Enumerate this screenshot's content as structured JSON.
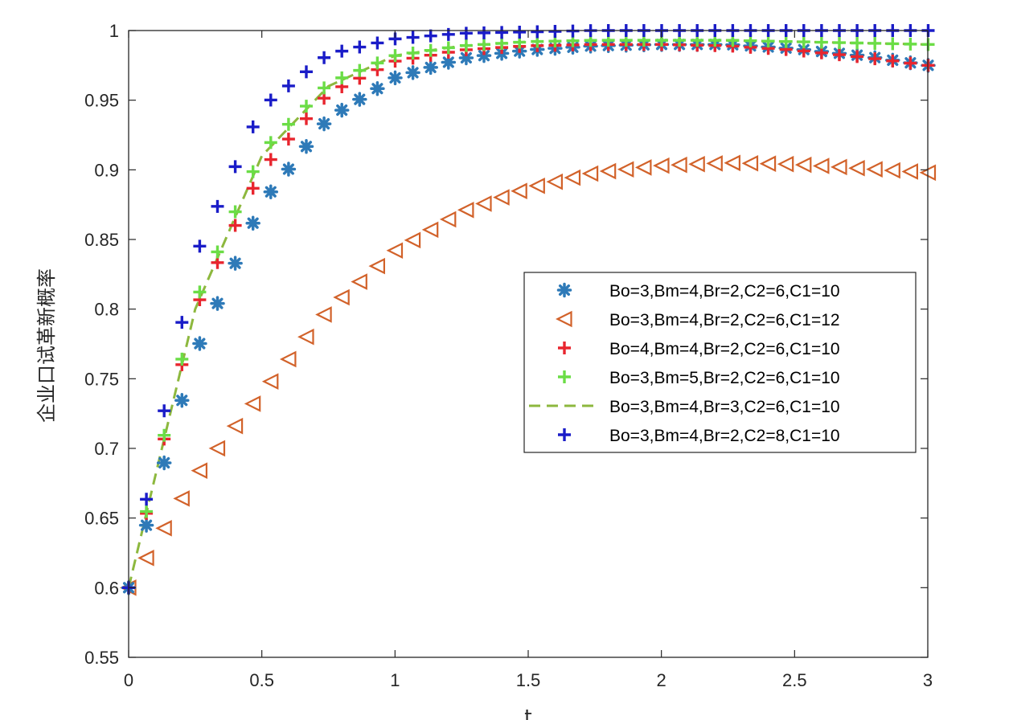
{
  "chart_data": {
    "type": "scatter",
    "title": "",
    "xlabel": "t",
    "ylabel": "企业口试革新概率",
    "xlim": [
      0,
      3
    ],
    "ylim": [
      0.55,
      1
    ],
    "xticks": [
      0,
      0.5,
      1,
      1.5,
      2,
      2.5,
      3
    ],
    "xtick_labels": [
      "0",
      "0.5",
      "1",
      "1.5",
      "2",
      "2.5",
      "3"
    ],
    "yticks": [
      0.55,
      0.6,
      0.65,
      0.7,
      0.75,
      0.8,
      0.85,
      0.9,
      0.95,
      1
    ],
    "ytick_labels": [
      "0.55",
      "0.6",
      "0.65",
      "0.7",
      "0.75",
      "0.8",
      "0.85",
      "0.9",
      "0.95",
      "1"
    ],
    "grid": false,
    "legend_position": "right",
    "marker_step": 0.0667,
    "series": [
      {
        "name": "Bo=3,Bm=4,Br=2,C2=6,C1=10",
        "marker": "asterisk",
        "color": "#2e7ab8",
        "x": [
          0,
          0.25,
          0.5,
          0.75,
          1,
          1.25,
          1.5,
          1.75,
          2,
          2.25,
          2.5,
          2.75,
          3
        ],
        "y": [
          0.6,
          0.768,
          0.876,
          0.937,
          0.966,
          0.98,
          0.986,
          0.989,
          0.99,
          0.99,
          0.987,
          0.982,
          0.975
        ]
      },
      {
        "name": "Bo=3,Bm=4,Br=2,C2=6,C1=12",
        "marker": "triangle-left",
        "color": "#d2622a",
        "x": [
          0,
          0.25,
          0.5,
          0.75,
          1,
          1.25,
          1.5,
          1.75,
          2,
          2.25,
          2.5,
          2.75,
          3
        ],
        "y": [
          0.6,
          0.68,
          0.74,
          0.8,
          0.842,
          0.87,
          0.887,
          0.898,
          0.903,
          0.905,
          0.904,
          0.901,
          0.898
        ]
      },
      {
        "name": "Bo=4,Bm=4,Br=2,C2=6,C1=10",
        "marker": "plus",
        "color": "#e8252e",
        "x": [
          0,
          0.25,
          0.5,
          0.75,
          1,
          1.25,
          1.5,
          1.75,
          2,
          2.25,
          2.5,
          2.75,
          3
        ],
        "y": [
          0.6,
          0.8,
          0.9,
          0.955,
          0.978,
          0.986,
          0.989,
          0.99,
          0.99,
          0.989,
          0.986,
          0.981,
          0.975
        ]
      },
      {
        "name": "Bo=3,Bm=5,Br=2,C2=6,C1=10",
        "marker": "plus",
        "color": "#6bdd46",
        "x": [
          0,
          0.25,
          0.5,
          0.75,
          1,
          1.25,
          1.5,
          1.75,
          2,
          2.25,
          2.5,
          2.75,
          3
        ],
        "y": [
          0.6,
          0.805,
          0.913,
          0.962,
          0.982,
          0.989,
          0.992,
          0.993,
          0.993,
          0.993,
          0.992,
          0.991,
          0.99
        ]
      },
      {
        "name": "Bo=3,Bm=4,Br=3,C2=6,C1=10",
        "marker": "dashed-line",
        "color": "#8db83e",
        "x": [
          0,
          0.25,
          0.5,
          0.75,
          1,
          1.25,
          1.5,
          1.75,
          2,
          2.25,
          2.5,
          2.75,
          3
        ],
        "y": [
          0.6,
          0.8,
          0.91,
          0.96,
          0.982,
          0.989,
          0.992,
          0.993,
          0.993,
          0.993,
          0.992,
          0.991,
          0.99
        ]
      },
      {
        "name": "Bo=3,Bm=4,Br=2,C2=8,C1=10",
        "marker": "plus",
        "color": "#1a1cc8",
        "x": [
          0,
          0.25,
          0.5,
          0.75,
          1,
          1.25,
          1.5,
          1.75,
          2,
          2.25,
          2.5,
          2.75,
          3
        ],
        "y": [
          0.6,
          0.838,
          0.945,
          0.983,
          0.994,
          0.998,
          0.999,
          1.0,
          1.0,
          1.0,
          1.0,
          1.0,
          1.0
        ]
      }
    ]
  }
}
